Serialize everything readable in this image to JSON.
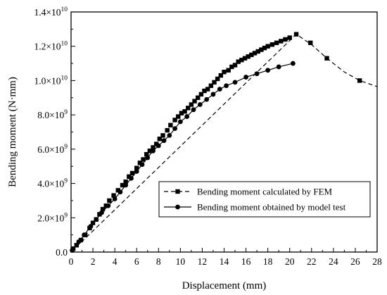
{
  "chart_data": {
    "type": "line",
    "xlabel": "Displacement (mm)",
    "ylabel": "Bending moment (N·mm)",
    "xlim": [
      0,
      28
    ],
    "ylim": [
      0,
      14000000000
    ],
    "x_ticks": [
      0,
      2,
      4,
      6,
      8,
      10,
      12,
      14,
      16,
      18,
      20,
      22,
      24,
      26,
      28
    ],
    "x_tick_labels": [
      "0",
      "2",
      "4",
      "6",
      "8",
      "10",
      "12",
      "14",
      "16",
      "18",
      "20",
      "22",
      "24",
      "26",
      "28"
    ],
    "y_ticks": [
      {
        "value": 0,
        "mant": "0.0",
        "exp": ""
      },
      {
        "value": 2000000000,
        "mant": "2.0×10",
        "exp": "9"
      },
      {
        "value": 4000000000,
        "mant": "4.0×10",
        "exp": "9"
      },
      {
        "value": 6000000000,
        "mant": "6.0×10",
        "exp": "9"
      },
      {
        "value": 8000000000,
        "mant": "8.0×10",
        "exp": "9"
      },
      {
        "value": 10000000000,
        "mant": "1.0×10",
        "exp": "10"
      },
      {
        "value": 12000000000,
        "mant": "1.2×10",
        "exp": "10"
      },
      {
        "value": 14000000000,
        "mant": "1.4×10",
        "exp": "10"
      }
    ],
    "grid": false,
    "legend_position": "lower-right",
    "series": [
      {
        "name": "Bending moment calculated by FEM",
        "line_style": "dashed",
        "marker": "square",
        "color": "#000000",
        "x": [
          0.2,
          0.5,
          0.9,
          1.3,
          1.7,
          2.0,
          2.3,
          2.6,
          2.9,
          3.2,
          3.5,
          3.9,
          4.3,
          4.7,
          5.0,
          5.3,
          5.6,
          6.0,
          6.3,
          6.6,
          6.9,
          7.2,
          7.5,
          7.8,
          8.1,
          8.4,
          8.8,
          9.1,
          9.5,
          9.8,
          10.1,
          10.4,
          10.7,
          11.0,
          11.3,
          11.6,
          11.9,
          12.2,
          12.5,
          12.8,
          13.1,
          13.4,
          13.7,
          14.0,
          14.4,
          14.7,
          15.0,
          15.3,
          15.6,
          15.9,
          16.2,
          16.5,
          16.8,
          17.1,
          17.4,
          17.7,
          18.0,
          18.4,
          18.8,
          19.2,
          19.6,
          20.0,
          20.6,
          21.9,
          23.4,
          26.4
        ],
        "y": [
          200000000,
          400000000,
          700000000,
          1000000000,
          1400000000,
          1700000000,
          1900000000,
          2200000000,
          2500000000,
          2700000000,
          3000000000,
          3300000000,
          3600000000,
          3900000000,
          4100000000,
          4400000000,
          4600000000,
          4900000000,
          5200000000,
          5400000000,
          5700000000,
          5900000000,
          6100000000,
          6300000000,
          6600000000,
          6800000000,
          7100000000,
          7400000000,
          7700000000,
          7900000000,
          8100000000,
          8200000000,
          8400000000,
          8600000000,
          8800000000,
          9000000000,
          9200000000,
          9400000000,
          9500000000,
          9700000000,
          9900000000,
          10100000000,
          10300000000,
          10500000000,
          10600000000,
          10800000000,
          10900000000,
          11100000000,
          11200000000,
          11300000000,
          11400000000,
          11500000000,
          11600000000,
          11700000000,
          11800000000,
          11900000000,
          12000000000,
          12100000000,
          12200000000,
          12300000000,
          12400000000,
          12500000000,
          12700000000,
          12200000000,
          11300000000,
          10000000000
        ],
        "line_x": [
          0,
          20.6,
          22,
          23.4,
          25,
          26.4,
          28
        ],
        "line_y": [
          0,
          12700000000,
          12100000000,
          11300000000,
          10500000000,
          10000000000,
          9650000000
        ]
      },
      {
        "name": "Bending moment obtained by model test",
        "line_style": "solid",
        "marker": "circle",
        "color": "#000000",
        "x": [
          0.1,
          0.7,
          1.2,
          1.8,
          2.3,
          2.8,
          3.4,
          4.0,
          4.5,
          5.0,
          5.5,
          6.0,
          6.5,
          7.0,
          7.5,
          8.0,
          8.5,
          9.0,
          9.5,
          10.0,
          10.6,
          11.2,
          11.8,
          12.4,
          13.0,
          13.6,
          14.2,
          15.0,
          16.0,
          17.0,
          18.0,
          19.0,
          20.3
        ],
        "y": [
          100000000,
          600000000,
          1000000000,
          1500000000,
          1900000000,
          2300000000,
          2700000000,
          3100000000,
          3500000000,
          3900000000,
          4300000000,
          4700000000,
          5100000000,
          5500000000,
          5900000000,
          6200000000,
          6500000000,
          6800000000,
          7200000000,
          7600000000,
          7900000000,
          8300000000,
          8600000000,
          8900000000,
          9200000000,
          9500000000,
          9700000000,
          9900000000,
          10200000000,
          10400000000,
          10600000000,
          10800000000,
          11000000000
        ]
      }
    ]
  }
}
